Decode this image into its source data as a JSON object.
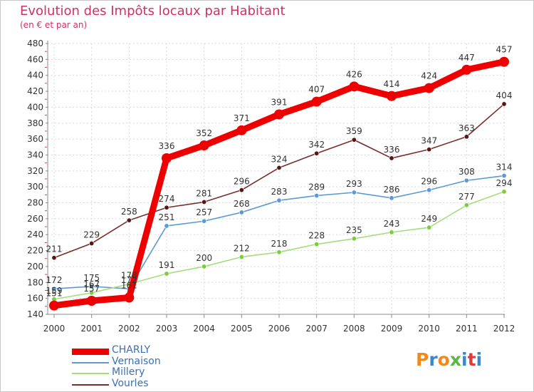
{
  "chart_data": {
    "type": "line",
    "title": "Evolution des Impôts locaux par Habitant",
    "subtitle": "(en € et par an)",
    "x": [
      "2000",
      "2001",
      "2002",
      "2003",
      "2004",
      "2005",
      "2006",
      "2007",
      "2008",
      "2009",
      "2010",
      "2011",
      "2012"
    ],
    "ylim": [
      140,
      480
    ],
    "yticks": [
      140,
      160,
      180,
      200,
      220,
      240,
      260,
      280,
      300,
      320,
      340,
      360,
      380,
      400,
      420,
      440,
      460,
      480
    ],
    "grid": true,
    "series": [
      {
        "name": "CHARLY",
        "color": "#ee0000",
        "marker": "#ee0000",
        "values": [
          151,
          157,
          161,
          336,
          352,
          371,
          391,
          407,
          426,
          414,
          424,
          447,
          457
        ]
      },
      {
        "name": "Vernaison",
        "color": "#5d9ad3",
        "marker": "#5d9ad3",
        "values": [
          172,
          175,
          172,
          251,
          257,
          268,
          283,
          289,
          293,
          286,
          296,
          308,
          314
        ]
      },
      {
        "name": "Millery",
        "color": "#a5dd7c",
        "marker": "#7ccd3c",
        "values": [
          159,
          167,
          178,
          191,
          200,
          212,
          218,
          228,
          235,
          243,
          249,
          277,
          294
        ]
      },
      {
        "name": "Vourles",
        "color": "#7a2d2d",
        "marker": "#5a1616",
        "values": [
          211,
          229,
          258,
          274,
          281,
          296,
          324,
          342,
          359,
          336,
          347,
          363,
          404
        ]
      }
    ]
  },
  "logo": {
    "text": "Proxiti",
    "colors": [
      "#f08a1c",
      "#3d86c6",
      "#f08a1c",
      "#5ab54a",
      "#3d86c6",
      "#e23a3a",
      "#3d86c6"
    ]
  }
}
